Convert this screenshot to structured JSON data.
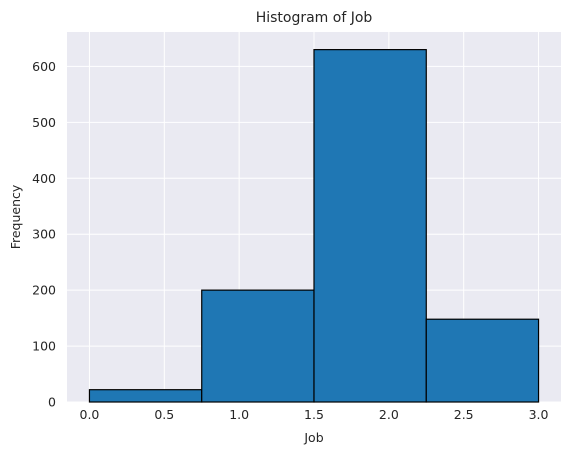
{
  "chart_data": {
    "type": "bar",
    "title": "Histogram of Job",
    "xlabel": "Job",
    "ylabel": "Frequency",
    "bins": [
      {
        "x0": 0.0,
        "x1": 0.75,
        "value": 22
      },
      {
        "x0": 0.75,
        "x1": 1.5,
        "value": 200
      },
      {
        "x0": 1.5,
        "x1": 2.25,
        "value": 630
      },
      {
        "x0": 2.25,
        "x1": 3.0,
        "value": 148
      }
    ],
    "xlim": [
      -0.15,
      3.15
    ],
    "ylim": [
      0,
      661.5
    ],
    "x_ticks": [
      "0.0",
      "0.5",
      "1.0",
      "1.5",
      "2.0",
      "2.5",
      "3.0"
    ],
    "y_ticks": [
      "0",
      "100",
      "200",
      "300",
      "400",
      "500",
      "600"
    ],
    "grid": true,
    "colors": {
      "bar_fill": "#1f77b4",
      "bar_edge": "#000000",
      "plot_background": "#eaeaf2",
      "grid": "#ffffff",
      "text": "#262626"
    }
  }
}
